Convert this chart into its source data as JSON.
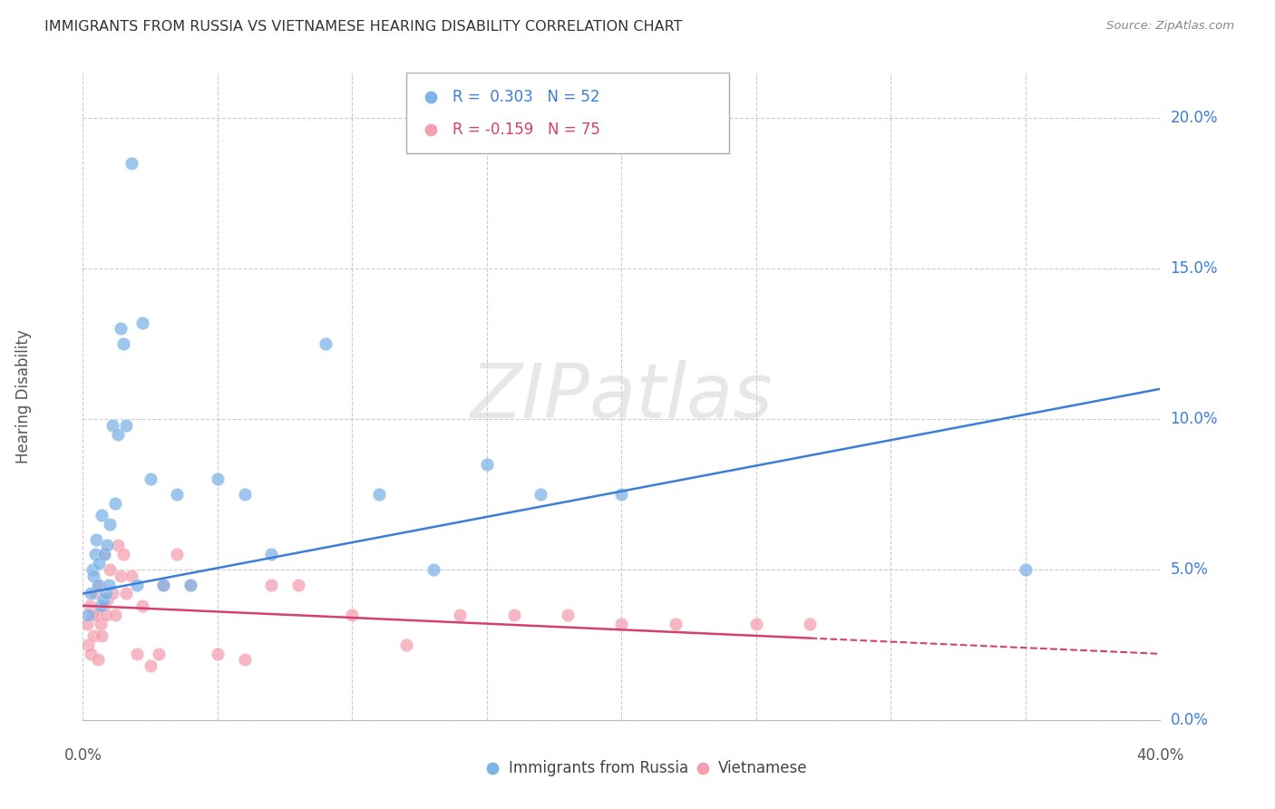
{
  "title": "IMMIGRANTS FROM RUSSIA VS VIETNAMESE HEARING DISABILITY CORRELATION CHART",
  "source": "Source: ZipAtlas.com",
  "ylabel": "Hearing Disability",
  "ytick_vals": [
    0.0,
    5.0,
    10.0,
    15.0,
    20.0
  ],
  "ytick_labels": [
    "0.0%",
    "5.0%",
    "10.0%",
    "15.0%",
    "20.0%"
  ],
  "xtick_vals": [
    0.0,
    5.0,
    10.0,
    15.0,
    20.0,
    25.0,
    30.0,
    35.0,
    40.0
  ],
  "xlim": [
    0.0,
    40.0
  ],
  "ylim": [
    0.0,
    21.5
  ],
  "russia_color": "#7EB3E8",
  "vietnamese_color": "#F4A0B0",
  "russia_line_color": "#3B7DD8",
  "vietnamese_line_color": "#D44070",
  "background_color": "#FFFFFF",
  "watermark_text": "ZIPatlas",
  "russia_line_x0": 0.0,
  "russia_line_y0": 4.2,
  "russia_line_x1": 40.0,
  "russia_line_y1": 11.0,
  "viet_line_x0": 0.0,
  "viet_line_y0": 3.8,
  "viet_line_x1": 40.0,
  "viet_line_y1": 2.2,
  "viet_solid_end": 27.0,
  "russia_pts_x": [
    0.2,
    0.3,
    0.35,
    0.4,
    0.45,
    0.5,
    0.55,
    0.6,
    0.65,
    0.7,
    0.75,
    0.8,
    0.85,
    0.9,
    0.95,
    1.0,
    1.1,
    1.2,
    1.3,
    1.4,
    1.5,
    1.6,
    1.8,
    2.0,
    2.2,
    2.5,
    3.0,
    3.5,
    4.0,
    5.0,
    6.0,
    7.0,
    9.0,
    11.0,
    13.0,
    15.0,
    17.0,
    20.0,
    35.0
  ],
  "russia_pts_y": [
    3.5,
    4.2,
    5.0,
    4.8,
    5.5,
    6.0,
    4.5,
    5.2,
    3.8,
    6.8,
    4.0,
    5.5,
    4.2,
    5.8,
    4.5,
    6.5,
    9.8,
    7.2,
    9.5,
    13.0,
    12.5,
    9.8,
    18.5,
    4.5,
    13.2,
    8.0,
    4.5,
    7.5,
    4.5,
    8.0,
    7.5,
    5.5,
    12.5,
    7.5,
    5.0,
    8.5,
    7.5,
    7.5,
    5.0
  ],
  "viet_pts_x": [
    0.15,
    0.2,
    0.25,
    0.3,
    0.35,
    0.4,
    0.45,
    0.5,
    0.55,
    0.6,
    0.65,
    0.7,
    0.75,
    0.8,
    0.85,
    0.9,
    1.0,
    1.1,
    1.2,
    1.3,
    1.4,
    1.5,
    1.6,
    1.8,
    2.0,
    2.2,
    2.5,
    2.8,
    3.0,
    3.5,
    4.0,
    5.0,
    6.0,
    7.0,
    8.0,
    10.0,
    12.0,
    14.0,
    16.0,
    18.0,
    20.0,
    22.0,
    25.0,
    27.0
  ],
  "viet_pts_y": [
    3.2,
    2.5,
    3.8,
    2.2,
    3.5,
    2.8,
    4.2,
    3.5,
    2.0,
    4.5,
    3.2,
    2.8,
    3.8,
    5.5,
    3.5,
    4.0,
    5.0,
    4.2,
    3.5,
    5.8,
    4.8,
    5.5,
    4.2,
    4.8,
    2.2,
    3.8,
    1.8,
    2.2,
    4.5,
    5.5,
    4.5,
    2.2,
    2.0,
    4.5,
    4.5,
    3.5,
    2.5,
    3.5,
    3.5,
    3.5,
    3.2,
    3.2,
    3.2,
    3.2
  ]
}
